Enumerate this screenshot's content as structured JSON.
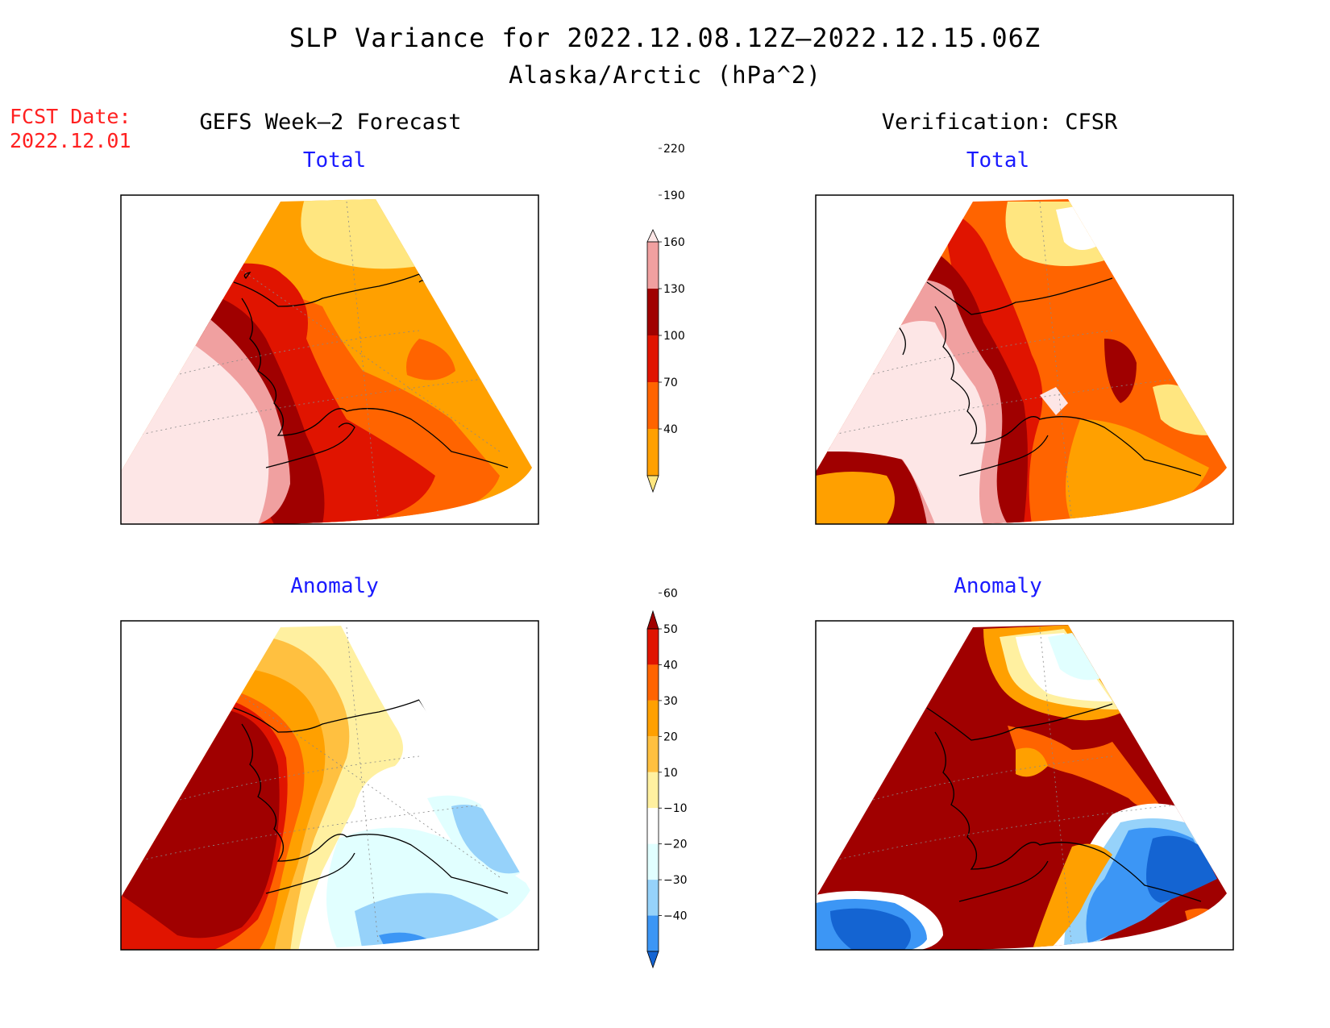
{
  "title": "SLP Variance for 2022.12.08.12Z–2022.12.15.06Z",
  "subtitle": "Alaska/Arctic (hPa^2)",
  "fcst_date": {
    "label": "FCST Date:",
    "value": "2022.12.01"
  },
  "columns": {
    "left": "GEFS Week–2 Forecast",
    "right": "Verification: CFSR"
  },
  "panels": {
    "top_left": "Total",
    "top_right": "Total",
    "bottom_left": "Anomaly",
    "bottom_right": "Anomaly"
  },
  "colorbars": {
    "total": {
      "levels": [
        "40",
        "70",
        "100",
        "130",
        "160",
        "190",
        "220"
      ],
      "colors": [
        "#ffe680",
        "#ffa000",
        "#ff6400",
        "#e01400",
        "#a00000",
        "#f0a0a0",
        "#fde6e6"
      ]
    },
    "anomaly": {
      "levels": [
        "−40",
        "−30",
        "−20",
        "−10",
        "10",
        "20",
        "30",
        "40",
        "50",
        "60"
      ],
      "colors": [
        "#1464d2",
        "#3c96f5",
        "#96d2fa",
        "#e1ffff",
        "#ffffff",
        "#fff0a0",
        "#ffc040",
        "#ffa000",
        "#ff6400",
        "#e01400",
        "#a00000"
      ]
    }
  }
}
